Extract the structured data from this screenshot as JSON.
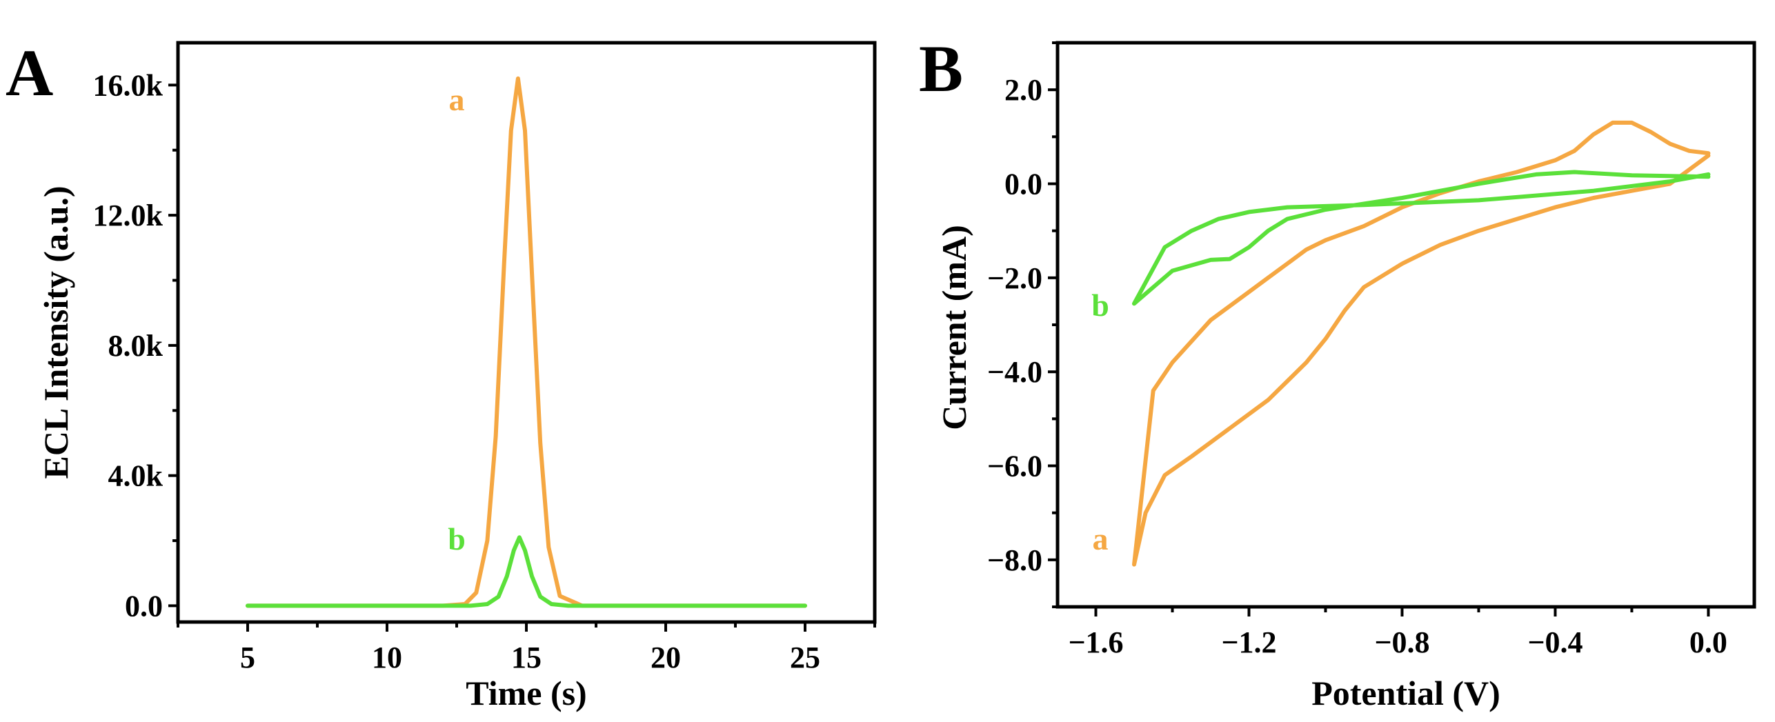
{
  "chart_data": [
    {
      "panel": "A",
      "type": "line",
      "title": "",
      "xlabel": "Time (s)",
      "ylabel": "ECL Intensity (a.u.)",
      "xlim": [
        2.5,
        27.5
      ],
      "ylim": [
        -500,
        17300
      ],
      "xticks": [
        5,
        10,
        15,
        20,
        25
      ],
      "xtick_labels": [
        "5",
        "10",
        "15",
        "20",
        "25"
      ],
      "yticks": [
        0,
        4000,
        8000,
        12000,
        16000
      ],
      "ytick_labels": [
        "0.0",
        "4.0k",
        "8.0k",
        "12.0k",
        "16.0k"
      ],
      "series": [
        {
          "name": "a",
          "color": "#F5A742",
          "x": [
            5,
            12.0,
            12.8,
            13.2,
            13.6,
            13.9,
            14.2,
            14.45,
            14.7,
            14.95,
            15.2,
            15.5,
            15.8,
            16.2,
            17.0,
            25
          ],
          "y": [
            0,
            0,
            50,
            400,
            2000,
            5200,
            10500,
            14600,
            16200,
            14600,
            10200,
            5000,
            1800,
            300,
            0,
            0
          ]
        },
        {
          "name": "b",
          "color": "#5BE03A",
          "x": [
            5,
            13.0,
            13.6,
            14.0,
            14.3,
            14.55,
            14.75,
            14.95,
            15.2,
            15.5,
            15.9,
            16.5,
            25
          ],
          "y": [
            0,
            0,
            50,
            280,
            900,
            1700,
            2100,
            1700,
            900,
            280,
            50,
            0,
            0
          ]
        }
      ],
      "curve_labels": [
        {
          "text": "a",
          "series": "a"
        },
        {
          "text": "b",
          "series": "b"
        }
      ]
    },
    {
      "panel": "B",
      "type": "line",
      "title": "",
      "xlabel": "Potential (V)",
      "ylabel": "Current (mA)",
      "xlim": [
        -1.7,
        0.12
      ],
      "ylim": [
        -9.0,
        3.0
      ],
      "xticks": [
        -1.6,
        -1.2,
        -0.8,
        -0.4,
        0.0
      ],
      "xtick_labels": [
        "−1.6",
        "−1.2",
        "−0.8",
        "−0.4",
        "0.0"
      ],
      "yticks": [
        2.0,
        0.0,
        -2.0,
        -4.0,
        -6.0,
        -8.0
      ],
      "ytick_labels": [
        "2.0",
        "0.0",
        "−2.0",
        "−4.0",
        "−6.0",
        "−8.0"
      ],
      "series": [
        {
          "name": "a",
          "color": "#F5A742",
          "x": [
            0.0,
            -0.05,
            -0.1,
            -0.15,
            -0.2,
            -0.25,
            -0.3,
            -0.35,
            -0.4,
            -0.5,
            -0.6,
            -0.7,
            -0.8,
            -0.9,
            -1.0,
            -1.05,
            -1.1,
            -1.15,
            -1.2,
            -1.3,
            -1.4,
            -1.45,
            -1.5,
            -1.47,
            -1.42,
            -1.35,
            -1.25,
            -1.15,
            -1.1,
            -1.05,
            -1.0,
            -0.95,
            -0.9,
            -0.8,
            -0.7,
            -0.6,
            -0.5,
            -0.4,
            -0.3,
            -0.2,
            -0.1,
            0.0
          ],
          "y": [
            0.65,
            0.7,
            0.85,
            1.1,
            1.3,
            1.3,
            1.05,
            0.7,
            0.5,
            0.25,
            0.05,
            -0.2,
            -0.5,
            -0.9,
            -1.2,
            -1.4,
            -1.7,
            -2.0,
            -2.3,
            -2.9,
            -3.8,
            -4.4,
            -8.1,
            -7.0,
            -6.2,
            -5.8,
            -5.2,
            -4.6,
            -4.2,
            -3.8,
            -3.3,
            -2.7,
            -2.2,
            -1.7,
            -1.3,
            -1.0,
            -0.75,
            -0.5,
            -0.3,
            -0.15,
            0.0,
            0.6
          ]
        },
        {
          "name": "b",
          "color": "#5BE03A",
          "x": [
            0.0,
            -0.2,
            -0.35,
            -0.45,
            -0.6,
            -0.8,
            -1.0,
            -1.1,
            -1.15,
            -1.2,
            -1.25,
            -1.3,
            -1.4,
            -1.5,
            -1.42,
            -1.35,
            -1.28,
            -1.2,
            -1.1,
            -0.9,
            -0.6,
            -0.3,
            -0.1,
            0.0
          ],
          "y": [
            0.15,
            0.18,
            0.25,
            0.2,
            0.0,
            -0.3,
            -0.55,
            -0.75,
            -1.0,
            -1.35,
            -1.6,
            -1.62,
            -1.85,
            -2.55,
            -1.35,
            -1.0,
            -0.75,
            -0.6,
            -0.5,
            -0.45,
            -0.35,
            -0.15,
            0.05,
            0.2
          ]
        }
      ],
      "curve_labels": [
        {
          "text": "b",
          "series": "b"
        },
        {
          "text": "a",
          "series": "a"
        }
      ]
    }
  ]
}
